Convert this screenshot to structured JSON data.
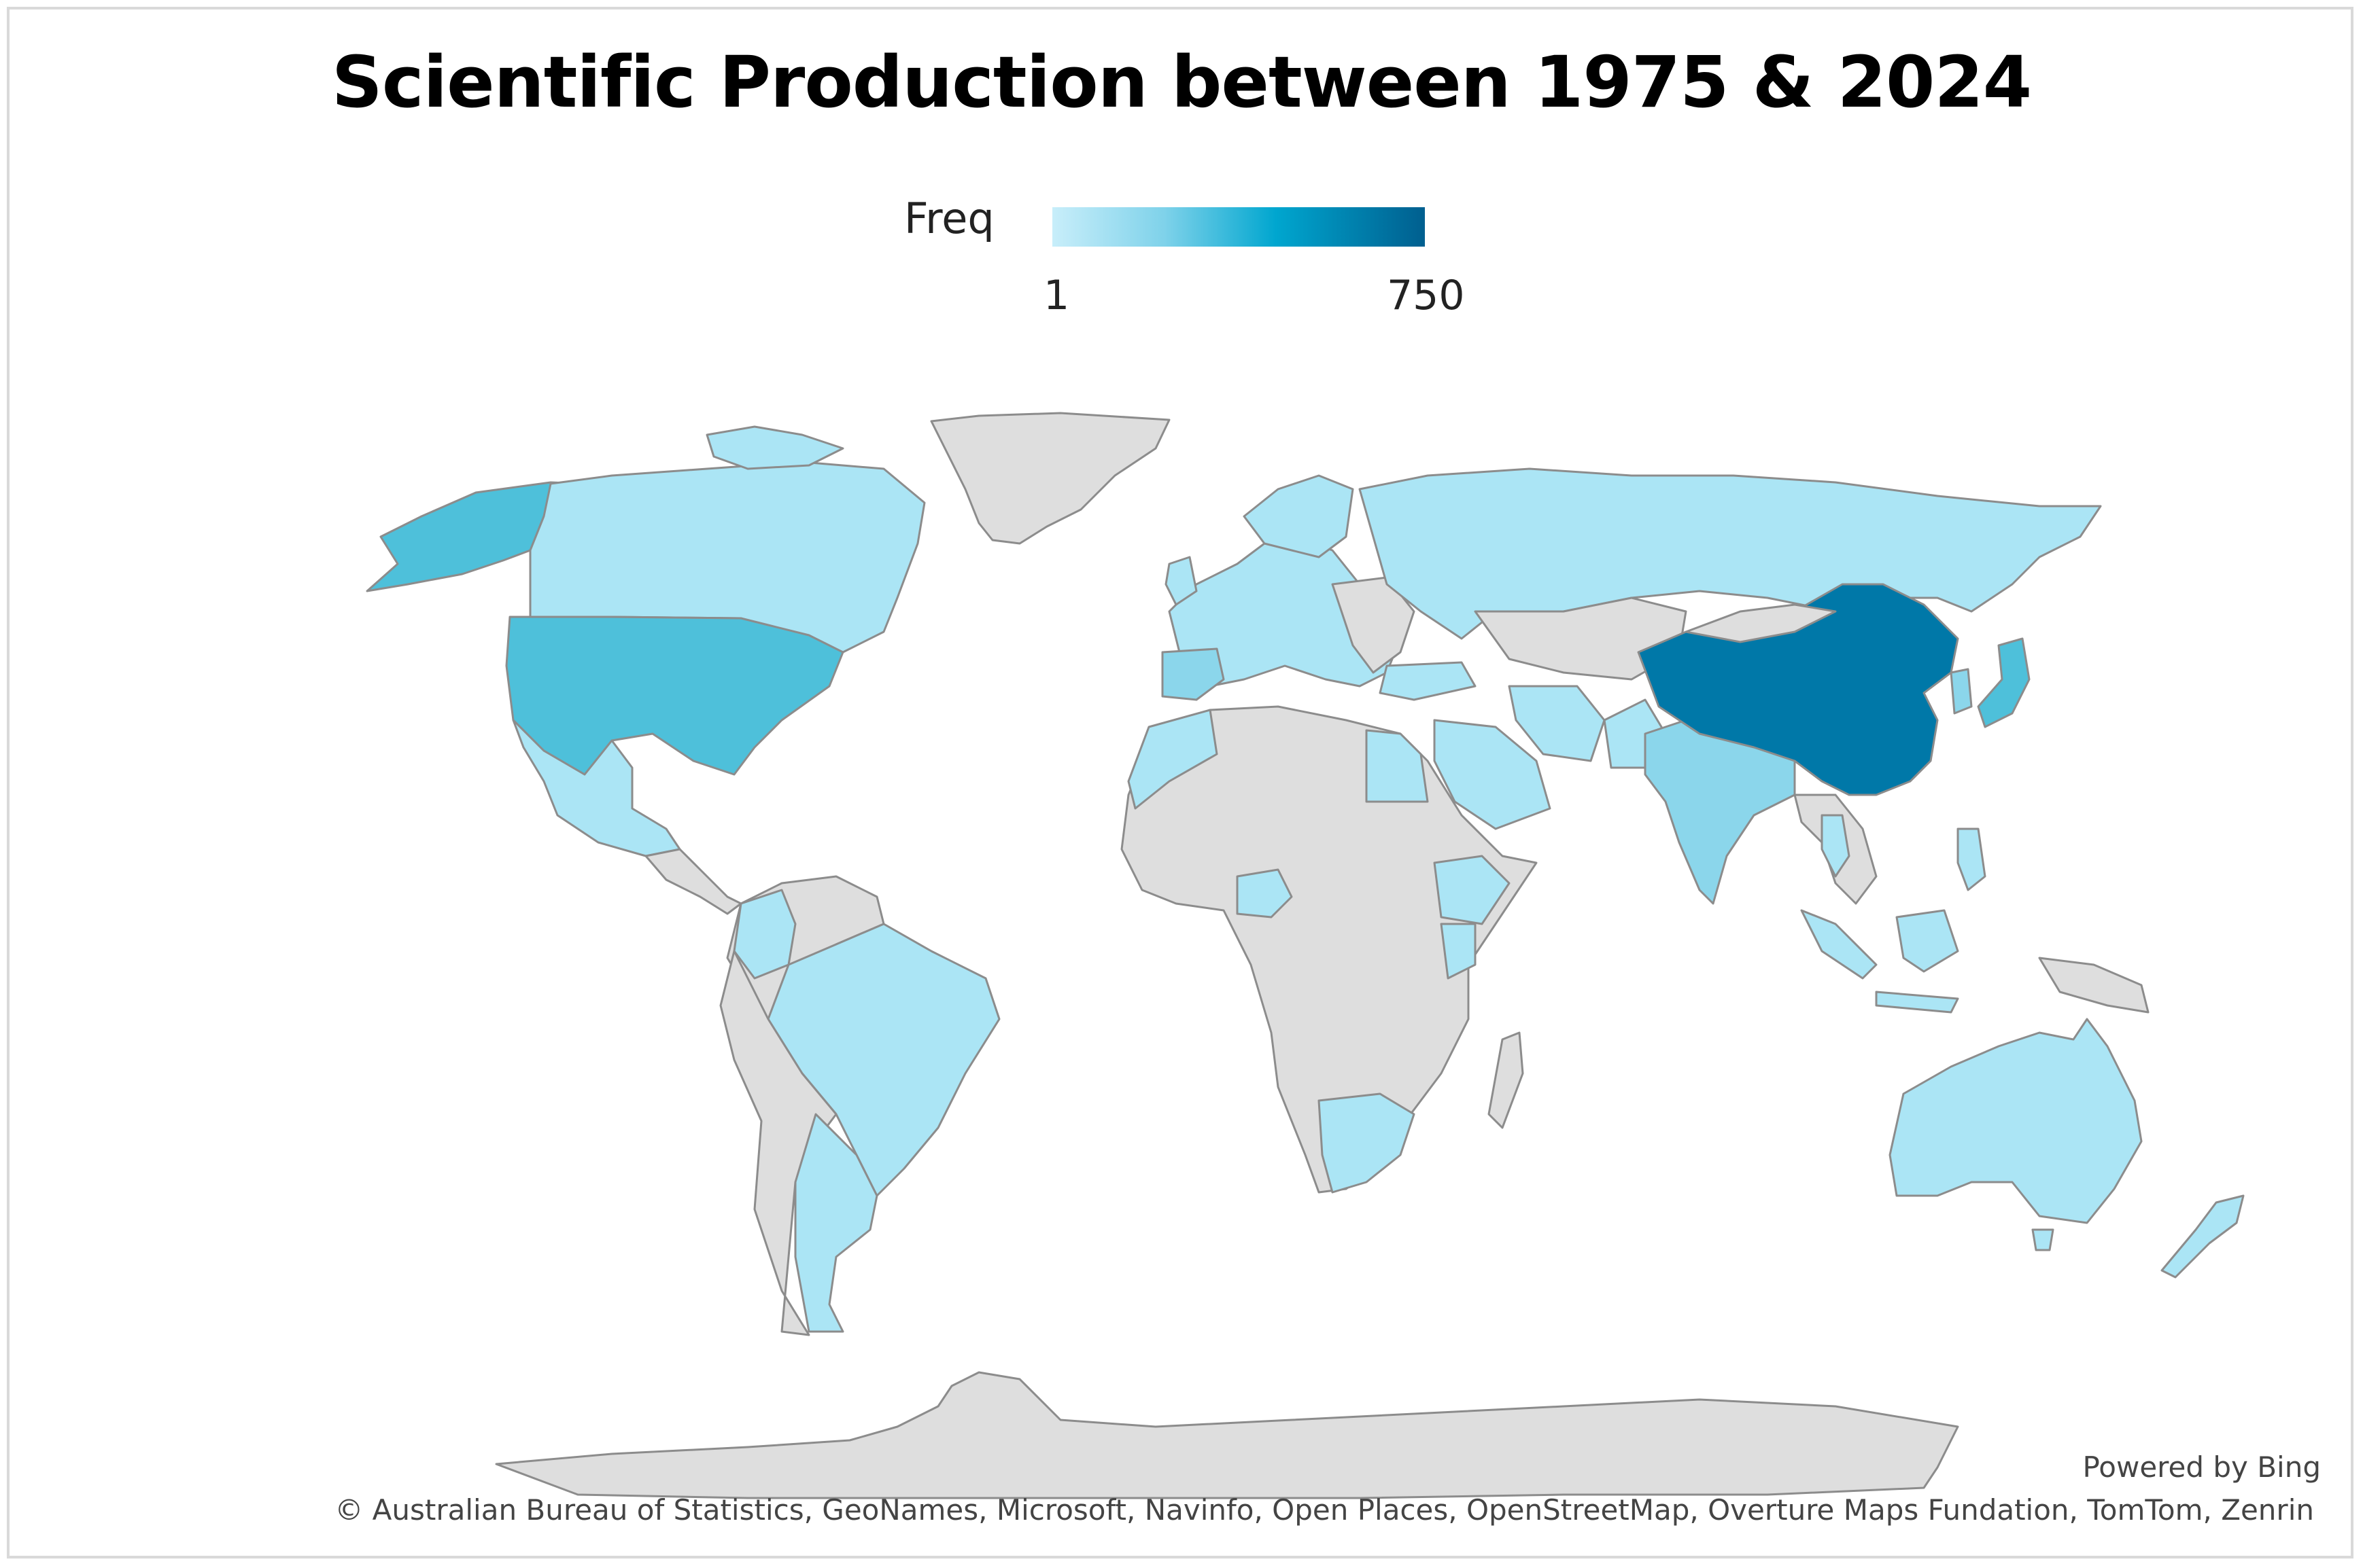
{
  "title": "Scientific Production between 1975 & 2024",
  "legend": {
    "label": "Freq",
    "min_label": "1",
    "max_label": "750",
    "colors": [
      "#c8eefa",
      "#7fd2ea",
      "#00a6cf",
      "#005f8f"
    ]
  },
  "map_data": {
    "type": "choropleth",
    "measure": "Freq",
    "range": [
      1,
      750
    ],
    "no_data_color": "#dedede",
    "highlighted_regions": [
      {
        "region": "China",
        "level": "highest",
        "color": "#0078a8"
      },
      {
        "region": "United States",
        "level": "medium",
        "color": "#4ec0da"
      },
      {
        "region": "Alaska",
        "level": "medium",
        "color": "#4ec0da"
      },
      {
        "region": "India",
        "level": "low-medium",
        "color": "#8bd6eb"
      },
      {
        "region": "Japan",
        "level": "medium",
        "color": "#4ec0da"
      },
      {
        "region": "Spain",
        "level": "low-medium",
        "color": "#8bd6eb"
      },
      {
        "region": "Canada",
        "level": "low",
        "color": "#abe5f5"
      },
      {
        "region": "Brazil",
        "level": "low",
        "color": "#abe5f5"
      },
      {
        "region": "Australia",
        "level": "low",
        "color": "#abe5f5"
      },
      {
        "region": "Russia",
        "level": "low",
        "color": "#abe5f5"
      },
      {
        "region": "Mexico",
        "level": "low",
        "color": "#abe5f5"
      },
      {
        "region": "Argentina",
        "level": "low",
        "color": "#abe5f5"
      },
      {
        "region": "Egypt",
        "level": "low",
        "color": "#abe5f5"
      },
      {
        "region": "Saudi Arabia",
        "level": "low",
        "color": "#abe5f5"
      },
      {
        "region": "Iran",
        "level": "low",
        "color": "#abe5f5"
      },
      {
        "region": "South Africa",
        "level": "low",
        "color": "#abe5f5"
      },
      {
        "region": "Nigeria",
        "level": "low",
        "color": "#abe5f5"
      },
      {
        "region": "Ethiopia",
        "level": "low",
        "color": "#abe5f5"
      },
      {
        "region": "Indonesia",
        "level": "low",
        "color": "#abe5f5"
      },
      {
        "region": "New Zealand",
        "level": "low",
        "color": "#abe5f5"
      }
    ]
  },
  "footer": {
    "powered_by": "Powered by Bing",
    "attribution": "© Australian Bureau of Statistics, GeoNames, Microsoft, Navinfo, Open Places, OpenStreetMap, Overture Maps Fundation, TomTom, Zenrin"
  }
}
